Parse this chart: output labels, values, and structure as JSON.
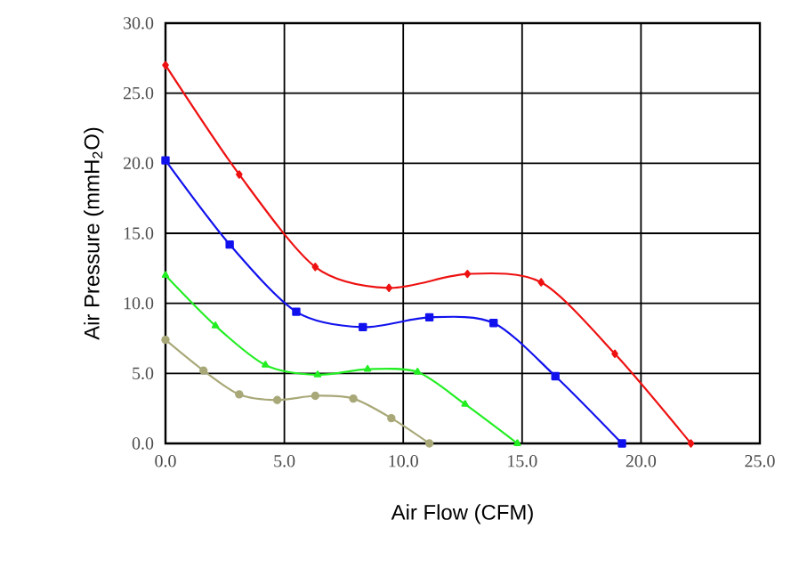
{
  "chart_data": {
    "type": "line",
    "xlabel": "Air Flow (CFM)",
    "ylabel": "Air Pressure (mmH$_{2}$O)",
    "xlim": [
      0,
      25
    ],
    "ylim": [
      0,
      30
    ],
    "xticks": [
      {
        "value": 0,
        "label": "0.0"
      },
      {
        "value": 5,
        "label": "5.0"
      },
      {
        "value": 10,
        "label": "10.0"
      },
      {
        "value": 15,
        "label": "15.0"
      },
      {
        "value": 20,
        "label": "20.0"
      },
      {
        "value": 25,
        "label": "25.0"
      }
    ],
    "yticks": [
      {
        "value": 0,
        "label": "0.0"
      },
      {
        "value": 5,
        "label": "5.0"
      },
      {
        "value": 10,
        "label": "10.0"
      },
      {
        "value": 15,
        "label": "15.0"
      },
      {
        "value": 20,
        "label": "20.0"
      },
      {
        "value": 25,
        "label": "25.0"
      },
      {
        "value": 30,
        "label": "30.0"
      }
    ],
    "grid": true,
    "line_style": "solid",
    "series": [
      {
        "color": "#ee1111",
        "marker": "diamond",
        "x": [
          0,
          3.1,
          6.3,
          9.4,
          12.7,
          15.8,
          18.9,
          22.1
        ],
        "values": [
          27.0,
          19.2,
          12.6,
          11.1,
          12.1,
          11.5,
          6.4,
          0
        ]
      },
      {
        "color": "#1111ee",
        "marker": "square",
        "x": [
          0,
          2.7,
          5.5,
          8.3,
          11.1,
          13.8,
          16.4,
          19.2
        ],
        "values": [
          20.2,
          14.2,
          9.4,
          8.3,
          9.0,
          8.6,
          4.8,
          0
        ]
      },
      {
        "color": "#22ee22",
        "marker": "triangle",
        "x": [
          0,
          2.1,
          4.2,
          6.4,
          8.5,
          10.6,
          12.6,
          14.8
        ],
        "values": [
          12.0,
          8.4,
          5.6,
          4.9,
          5.3,
          5.1,
          2.8,
          0
        ]
      },
      {
        "color": "#a8a878",
        "marker": "circle",
        "x": [
          0,
          1.6,
          3.1,
          4.7,
          6.3,
          7.9,
          9.5,
          11.1
        ],
        "values": [
          7.4,
          5.2,
          3.5,
          3.1,
          3.4,
          3.2,
          1.8,
          0
        ]
      }
    ]
  }
}
